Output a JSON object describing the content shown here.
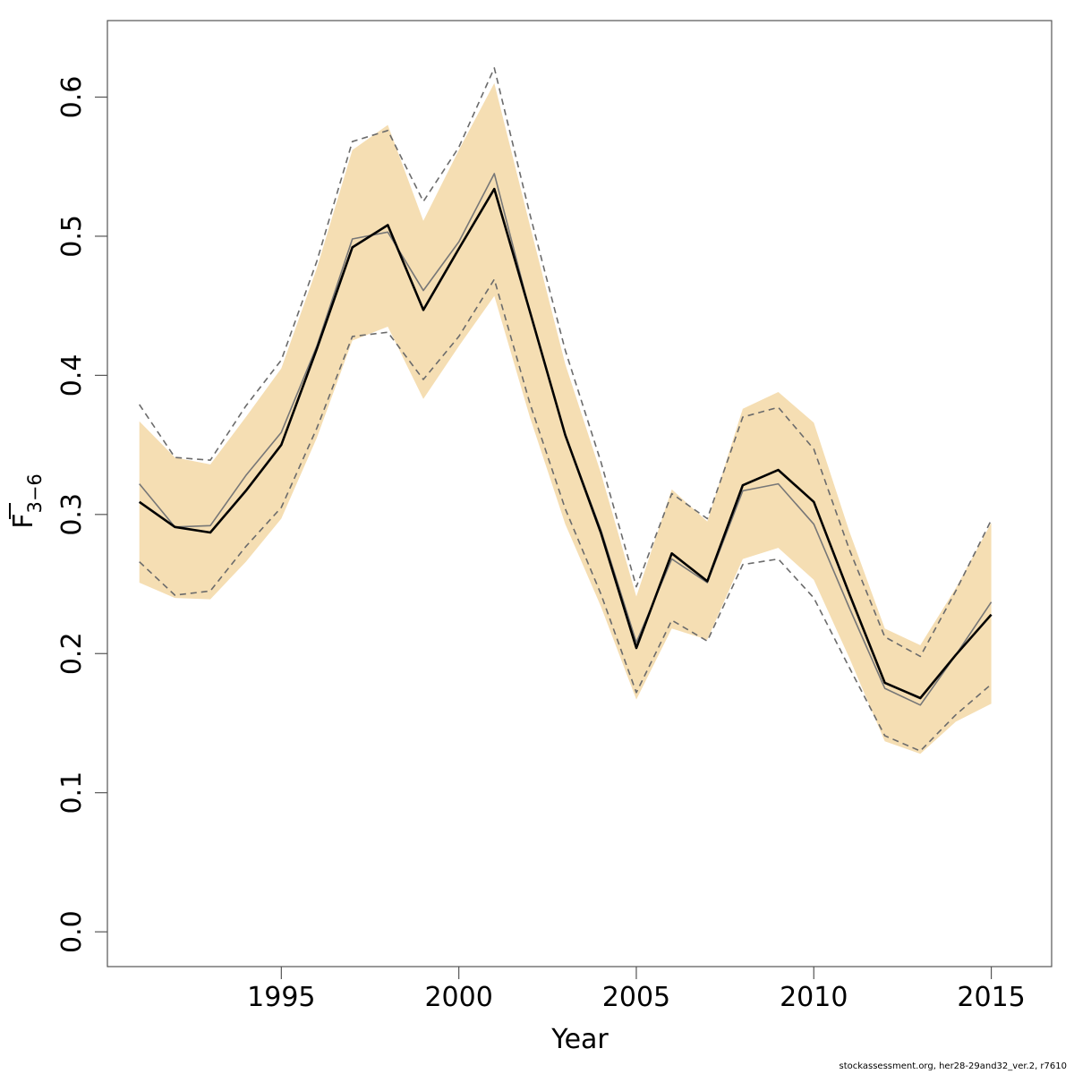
{
  "chart_data": {
    "type": "line",
    "xlabel": "Year",
    "ylabel": "F",
    "ylabel_subscript": "3−6",
    "xlim": [
      1990.1,
      2016.7
    ],
    "ylim": [
      -0.025,
      0.655
    ],
    "xticks": [
      1995,
      2000,
      2005,
      2010,
      2015
    ],
    "xtick_labels": [
      "1995",
      "2000",
      "2005",
      "2010",
      "2015"
    ],
    "yticks": [
      0.0,
      0.1,
      0.2,
      0.3,
      0.4,
      0.5,
      0.6
    ],
    "ytick_labels": [
      "0.0",
      "0.1",
      "0.2",
      "0.3",
      "0.4",
      "0.5",
      "0.6"
    ],
    "grid": false,
    "legend": "none",
    "x": [
      1991,
      1992,
      1993,
      1994,
      1995,
      1996,
      1997,
      1998,
      1999,
      2000,
      2001,
      2002,
      2003,
      2004,
      2005,
      2006,
      2007,
      2008,
      2009,
      2010,
      2011,
      2012,
      2013,
      2014,
      2015
    ],
    "band": {
      "color": "#f5deb3",
      "upper": [
        0.367,
        0.341,
        0.336,
        0.37,
        0.405,
        0.477,
        0.562,
        0.58,
        0.511,
        0.562,
        0.61,
        0.508,
        0.408,
        0.33,
        0.241,
        0.318,
        0.295,
        0.376,
        0.388,
        0.366,
        0.288,
        0.218,
        0.206,
        0.247,
        0.294
      ],
      "lower": [
        0.251,
        0.24,
        0.239,
        0.266,
        0.297,
        0.355,
        0.425,
        0.435,
        0.383,
        0.421,
        0.457,
        0.37,
        0.293,
        0.234,
        0.167,
        0.218,
        0.21,
        0.268,
        0.276,
        0.253,
        0.197,
        0.137,
        0.128,
        0.151,
        0.164
      ]
    },
    "series": [
      {
        "style": "dashed-upper",
        "color": "#6b6b6b",
        "values": [
          0.379,
          0.341,
          0.339,
          0.378,
          0.411,
          0.482,
          0.568,
          0.576,
          0.525,
          0.564,
          0.621,
          0.516,
          0.418,
          0.338,
          0.248,
          0.315,
          0.297,
          0.37,
          0.377,
          0.347,
          0.275,
          0.212,
          0.198,
          0.245,
          0.296
        ]
      },
      {
        "style": "dashed-lower",
        "color": "#6b6b6b",
        "values": [
          0.266,
          0.242,
          0.245,
          0.277,
          0.305,
          0.362,
          0.428,
          0.431,
          0.397,
          0.428,
          0.469,
          0.38,
          0.304,
          0.243,
          0.172,
          0.224,
          0.209,
          0.264,
          0.268,
          0.24,
          0.19,
          0.141,
          0.13,
          0.156,
          0.178
        ]
      },
      {
        "style": "thin",
        "color": "#777777",
        "values": [
          0.322,
          0.291,
          0.292,
          0.328,
          0.359,
          0.421,
          0.498,
          0.503,
          0.461,
          0.496,
          0.545,
          0.446,
          0.357,
          0.289,
          0.208,
          0.268,
          0.251,
          0.317,
          0.322,
          0.293,
          0.233,
          0.175,
          0.163,
          0.199,
          0.237
        ]
      },
      {
        "style": "thick",
        "color": "#000000",
        "values": [
          0.309,
          0.291,
          0.287,
          0.317,
          0.35,
          0.419,
          0.492,
          0.508,
          0.447,
          0.491,
          0.534,
          0.446,
          0.357,
          0.287,
          0.204,
          0.272,
          0.252,
          0.321,
          0.332,
          0.309,
          0.243,
          0.179,
          0.168,
          0.199,
          0.228
        ]
      }
    ]
  },
  "footer": "stockassessment.org, her28-29and32_ver.2, r7610"
}
